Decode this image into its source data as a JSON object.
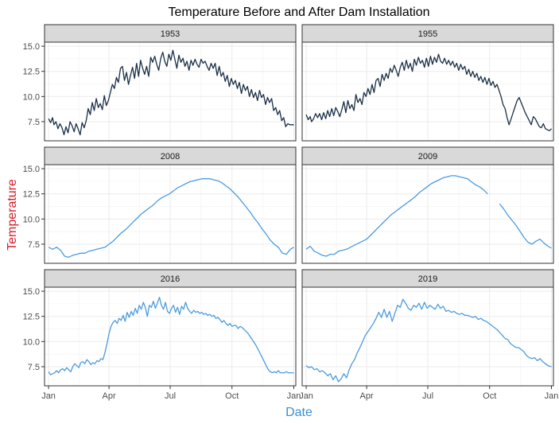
{
  "chart_data": {
    "type": "line",
    "title": "Temperature Before and After Dam Installation",
    "xlabel": "Date",
    "ylabel": "Temperature",
    "xlabel_color": "#3a8fd6",
    "ylabel_color": "#d6202a",
    "ylim": [
      5.6,
      15.4
    ],
    "yticks": [
      7.5,
      10.0,
      12.5,
      15.0
    ],
    "ytick_labels": [
      "7.5",
      "10.0",
      "12.5",
      "15.0"
    ],
    "xlim": [
      -6,
      368
    ],
    "xticks": [
      0,
      90,
      181,
      273,
      365
    ],
    "xtick_labels": [
      "Jan",
      "Apr",
      "Jul",
      "Oct",
      "Jan"
    ],
    "grid": true,
    "legend": "none",
    "layout": "facet 3 rows x 2 columns",
    "facets": [
      {
        "label": "1953",
        "color": "#1b2f45",
        "x": [
          0,
          3,
          6,
          8,
          11,
          14,
          17,
          20,
          23,
          26,
          29,
          32,
          35,
          38,
          41,
          44,
          47,
          50,
          53,
          56,
          59,
          62,
          65,
          68,
          71,
          74,
          77,
          80,
          83,
          86,
          89,
          92,
          95,
          98,
          101,
          104,
          107,
          110,
          113,
          116,
          119,
          122,
          125,
          128,
          131,
          134,
          137,
          140,
          143,
          146,
          149,
          152,
          155,
          158,
          161,
          164,
          167,
          170,
          173,
          176,
          179,
          182,
          185,
          188,
          191,
          194,
          197,
          200,
          203,
          206,
          209,
          212,
          215,
          218,
          221,
          224,
          227,
          230,
          233,
          236,
          239,
          242,
          245,
          248,
          251,
          254,
          257,
          260,
          263,
          266,
          269,
          272,
          275,
          278,
          281,
          284,
          287,
          290,
          293,
          296,
          299,
          302,
          305,
          308,
          311,
          314,
          317,
          320,
          323,
          326,
          329,
          332,
          335,
          338,
          341,
          344,
          347,
          350,
          353,
          356,
          359,
          362,
          365
        ],
        "y": [
          7.8,
          7.4,
          7.9,
          7.2,
          7.5,
          6.8,
          7.3,
          6.9,
          6.2,
          7.0,
          6.4,
          7.5,
          7.1,
          6.5,
          7.3,
          6.8,
          6.2,
          7.4,
          6.9,
          7.6,
          8.8,
          8.2,
          9.4,
          8.6,
          9.8,
          8.9,
          9.3,
          8.7,
          10.1,
          9.1,
          9.6,
          10.4,
          11.2,
          10.8,
          11.9,
          11.4,
          12.8,
          13.0,
          11.6,
          12.4,
          11.2,
          12.1,
          12.9,
          11.8,
          13.3,
          12.0,
          13.6,
          12.8,
          12.2,
          13.0,
          12.0,
          13.9,
          13.4,
          14.0,
          13.2,
          12.6,
          13.8,
          14.4,
          13.5,
          13.0,
          14.2,
          13.6,
          14.6,
          13.7,
          12.8,
          14.1,
          13.4,
          13.8,
          13.0,
          13.5,
          12.6,
          13.6,
          13.1,
          13.7,
          13.2,
          12.9,
          13.7,
          13.3,
          13.5,
          13.0,
          12.6,
          13.3,
          12.8,
          13.3,
          12.1,
          13.0,
          12.0,
          12.4,
          11.5,
          12.1,
          11.0,
          11.8,
          11.2,
          11.6,
          10.8,
          11.4,
          10.3,
          11.2,
          10.6,
          11.0,
          10.0,
          10.7,
          9.9,
          10.4,
          9.6,
          10.6,
          9.9,
          10.2,
          9.2,
          9.9,
          9.4,
          9.8,
          8.6,
          8.9,
          8.2,
          8.6,
          7.6,
          7.9,
          7.0,
          7.3,
          7.2,
          7.2,
          7.2
        ]
      },
      {
        "label": "1955",
        "color": "#1b2f45",
        "x": [
          0,
          3,
          6,
          8,
          11,
          14,
          17,
          20,
          23,
          26,
          29,
          32,
          35,
          38,
          41,
          44,
          47,
          50,
          53,
          56,
          59,
          62,
          65,
          68,
          71,
          74,
          77,
          80,
          83,
          86,
          89,
          92,
          95,
          98,
          101,
          104,
          107,
          110,
          113,
          116,
          119,
          122,
          125,
          128,
          131,
          134,
          137,
          140,
          143,
          146,
          149,
          152,
          155,
          158,
          161,
          164,
          167,
          170,
          173,
          176,
          179,
          182,
          185,
          188,
          191,
          194,
          197,
          200,
          203,
          206,
          209,
          212,
          215,
          218,
          221,
          224,
          227,
          230,
          233,
          236,
          239,
          242,
          245,
          248,
          251,
          254,
          257,
          260,
          263,
          266,
          269,
          272,
          275,
          278,
          281,
          284,
          287,
          290,
          293,
          296,
          299,
          302,
          305,
          308,
          311,
          314,
          317,
          320,
          323,
          326,
          329,
          332,
          335,
          338,
          341,
          344,
          347,
          350,
          353,
          356,
          359,
          362,
          365
        ],
        "y": [
          8.2,
          7.7,
          8.0,
          7.5,
          7.8,
          8.3,
          7.9,
          8.3,
          7.7,
          8.4,
          7.8,
          8.6,
          8.0,
          8.8,
          8.1,
          8.9,
          8.5,
          8.0,
          8.7,
          9.5,
          8.4,
          9.6,
          8.8,
          9.2,
          8.6,
          10.2,
          9.4,
          9.8,
          9.2,
          10.4,
          10.0,
          10.8,
          10.2,
          11.2,
          10.4,
          11.6,
          11.8,
          11.0,
          12.2,
          11.6,
          12.3,
          11.8,
          12.8,
          12.4,
          13.1,
          12.6,
          12.0,
          12.9,
          13.4,
          12.6,
          13.6,
          12.8,
          13.3,
          12.5,
          13.7,
          13.1,
          13.9,
          13.3,
          13.6,
          12.9,
          13.8,
          13.0,
          14.0,
          13.2,
          13.9,
          13.4,
          14.2,
          13.5,
          13.3,
          13.8,
          13.2,
          13.6,
          13.1,
          13.5,
          12.9,
          13.3,
          12.6,
          13.2,
          12.7,
          13.0,
          12.2,
          12.7,
          12.0,
          12.5,
          11.9,
          12.3,
          11.6,
          12.0,
          11.4,
          11.9,
          11.2,
          11.8,
          11.1,
          11.5,
          10.9,
          11.2,
          10.6,
          10.0,
          9.2,
          8.8,
          7.9,
          7.2,
          7.8,
          8.4,
          9.0,
          9.6,
          9.9,
          9.4,
          8.9,
          8.4,
          8.0,
          7.6,
          7.2,
          8.0,
          7.8,
          7.4,
          7.0,
          6.9,
          7.3,
          6.8,
          6.7,
          6.6,
          6.8
        ]
      },
      {
        "label": "2008",
        "color": "#4a9be0",
        "x": [
          0,
          6,
          12,
          18,
          24,
          30,
          36,
          42,
          48,
          54,
          60,
          66,
          72,
          78,
          84,
          90,
          96,
          102,
          108,
          114,
          120,
          126,
          132,
          138,
          144,
          150,
          156,
          162,
          168,
          174,
          180,
          186,
          192,
          198,
          204,
          210,
          216,
          222,
          228,
          234,
          240,
          246,
          252,
          258,
          264,
          270,
          276,
          282,
          288,
          294,
          300,
          306,
          312,
          318,
          324,
          330,
          336,
          342,
          348,
          354,
          360,
          365
        ],
        "y": [
          7.2,
          7.0,
          7.2,
          6.9,
          6.3,
          6.2,
          6.4,
          6.5,
          6.6,
          6.6,
          6.8,
          6.9,
          7.0,
          7.1,
          7.2,
          7.5,
          7.8,
          8.2,
          8.6,
          8.9,
          9.3,
          9.7,
          10.1,
          10.5,
          10.8,
          11.1,
          11.4,
          11.8,
          12.1,
          12.3,
          12.5,
          12.8,
          13.1,
          13.3,
          13.5,
          13.7,
          13.8,
          13.9,
          14.0,
          14.0,
          14.0,
          13.9,
          13.8,
          13.6,
          13.3,
          13.0,
          12.6,
          12.2,
          11.7,
          11.2,
          10.7,
          10.1,
          9.6,
          9.0,
          8.5,
          7.9,
          7.5,
          7.2,
          6.6,
          6.5,
          7.0,
          7.2
        ]
      },
      {
        "label": "2009",
        "color": "#4a9be0",
        "x": [
          0,
          6,
          12,
          18,
          24,
          30,
          36,
          42,
          48,
          54,
          60,
          66,
          72,
          78,
          84,
          90,
          96,
          102,
          108,
          114,
          120,
          126,
          132,
          138,
          144,
          150,
          156,
          162,
          168,
          174,
          180,
          186,
          192,
          198,
          204,
          210,
          216,
          222,
          228,
          234,
          240,
          246,
          252,
          258,
          264,
          270,
          276,
          282,
          288,
          294,
          300,
          306,
          312,
          318,
          324,
          330,
          336,
          342,
          348,
          354,
          360,
          365
        ],
        "y": [
          7.0,
          7.3,
          6.8,
          6.6,
          6.4,
          6.3,
          6.5,
          6.5,
          6.8,
          6.9,
          7.0,
          7.2,
          7.4,
          7.6,
          7.8,
          8.0,
          8.4,
          8.8,
          9.2,
          9.6,
          10.0,
          10.4,
          10.7,
          11.0,
          11.3,
          11.6,
          11.9,
          12.2,
          12.6,
          12.9,
          13.2,
          13.5,
          13.7,
          13.9,
          14.1,
          14.2,
          14.3,
          14.3,
          14.2,
          14.1,
          14.0,
          13.7,
          13.4,
          13.2,
          12.9,
          12.5,
          null,
          null,
          11.5,
          11.0,
          10.4,
          9.9,
          9.4,
          8.8,
          8.2,
          7.7,
          7.5,
          7.8,
          8.0,
          7.6,
          7.3,
          7.1
        ]
      },
      {
        "label": "2016",
        "color": "#4a9be0",
        "x": [
          0,
          3,
          6,
          9,
          12,
          15,
          18,
          21,
          24,
          27,
          30,
          33,
          36,
          39,
          42,
          45,
          48,
          51,
          54,
          57,
          60,
          63,
          66,
          69,
          72,
          75,
          78,
          81,
          84,
          87,
          90,
          93,
          96,
          99,
          102,
          105,
          108,
          111,
          114,
          117,
          120,
          123,
          126,
          129,
          132,
          135,
          138,
          141,
          144,
          147,
          150,
          153,
          156,
          159,
          162,
          165,
          168,
          171,
          174,
          177,
          180,
          183,
          186,
          189,
          192,
          195,
          198,
          201,
          204,
          207,
          210,
          213,
          216,
          219,
          222,
          225,
          228,
          231,
          234,
          237,
          240,
          243,
          246,
          249,
          252,
          255,
          258,
          261,
          264,
          267,
          270,
          273,
          276,
          279,
          282,
          285,
          288,
          291,
          294,
          297,
          300,
          303,
          306,
          309,
          312,
          315,
          318,
          321,
          324,
          327,
          330,
          333,
          336,
          339,
          342,
          345,
          348,
          351,
          354,
          357,
          360,
          365
        ],
        "y": [
          7.0,
          6.7,
          6.8,
          6.9,
          7.1,
          6.9,
          7.2,
          7.3,
          7.1,
          7.4,
          7.2,
          7.0,
          7.5,
          7.8,
          7.6,
          7.4,
          7.9,
          8.0,
          7.8,
          8.2,
          8.0,
          7.7,
          7.9,
          7.8,
          8.1,
          8.0,
          8.3,
          8.2,
          8.9,
          9.8,
          10.8,
          11.5,
          11.9,
          12.1,
          11.8,
          12.3,
          12.1,
          12.6,
          12.0,
          12.9,
          12.4,
          13.0,
          12.6,
          13.3,
          12.8,
          13.6,
          13.2,
          13.9,
          13.4,
          12.5,
          13.6,
          13.4,
          14.0,
          13.3,
          13.8,
          14.4,
          13.6,
          13.2,
          13.9,
          13.0,
          12.8,
          13.3,
          13.6,
          12.9,
          13.4,
          12.7,
          13.5,
          13.2,
          13.9,
          13.3,
          13.0,
          12.8,
          13.1,
          12.9,
          13.0,
          12.8,
          12.9,
          12.7,
          12.8,
          12.6,
          12.7,
          12.5,
          12.6,
          12.3,
          12.4,
          12.2,
          11.9,
          12.1,
          11.8,
          11.6,
          11.8,
          11.5,
          11.6,
          11.6,
          11.3,
          11.5,
          11.4,
          11.2,
          11.0,
          10.8,
          10.5,
          10.2,
          9.9,
          9.6,
          9.2,
          8.8,
          8.4,
          8.0,
          7.6,
          7.2,
          7.0,
          6.9,
          7.0,
          6.9,
          7.1,
          6.9,
          6.9,
          6.9,
          7.0,
          6.9,
          6.9,
          6.9
        ]
      },
      {
        "label": "2019",
        "color": "#4a9be0",
        "x": [
          0,
          4,
          8,
          12,
          16,
          20,
          24,
          28,
          32,
          36,
          40,
          44,
          48,
          52,
          56,
          60,
          64,
          68,
          72,
          76,
          80,
          84,
          88,
          92,
          96,
          100,
          104,
          108,
          112,
          116,
          120,
          124,
          128,
          132,
          136,
          140,
          144,
          148,
          152,
          156,
          160,
          164,
          168,
          172,
          176,
          180,
          184,
          188,
          192,
          196,
          200,
          204,
          208,
          212,
          216,
          220,
          224,
          228,
          232,
          236,
          240,
          244,
          248,
          252,
          256,
          260,
          264,
          268,
          272,
          276,
          280,
          284,
          288,
          292,
          296,
          300,
          304,
          308,
          312,
          316,
          320,
          324,
          328,
          332,
          336,
          340,
          344,
          348,
          352,
          356,
          360,
          365
        ],
        "y": [
          7.6,
          7.4,
          7.5,
          7.2,
          7.3,
          7.0,
          7.1,
          6.9,
          6.6,
          6.8,
          6.2,
          6.6,
          6.0,
          6.3,
          6.8,
          6.4,
          7.2,
          7.8,
          8.2,
          8.9,
          9.4,
          10.0,
          10.6,
          11.0,
          11.4,
          11.8,
          12.3,
          12.9,
          12.4,
          13.2,
          12.4,
          13.0,
          12.0,
          12.8,
          13.6,
          13.4,
          14.2,
          13.8,
          13.3,
          13.1,
          13.6,
          13.4,
          13.8,
          13.2,
          13.9,
          13.3,
          13.6,
          13.4,
          13.2,
          13.7,
          13.3,
          13.5,
          13.0,
          13.1,
          12.9,
          13.0,
          12.8,
          12.7,
          12.8,
          12.6,
          12.6,
          12.5,
          12.4,
          12.5,
          12.2,
          12.3,
          12.1,
          12.0,
          11.8,
          11.6,
          11.4,
          11.2,
          10.9,
          10.6,
          10.3,
          10.2,
          9.8,
          9.6,
          9.4,
          9.4,
          9.2,
          9.0,
          8.6,
          8.4,
          8.3,
          8.4,
          8.1,
          8.3,
          8.0,
          7.8,
          7.6,
          7.5
        ]
      }
    ]
  }
}
